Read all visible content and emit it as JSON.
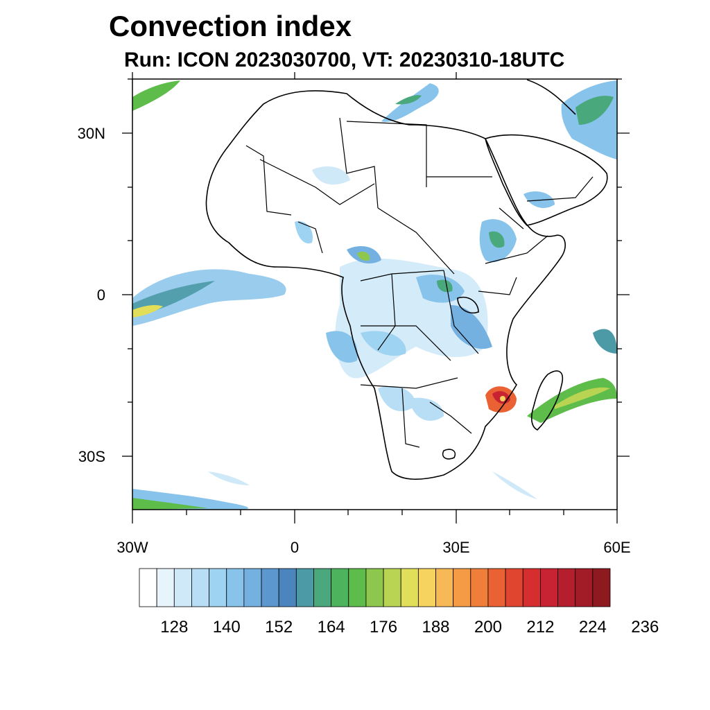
{
  "title": "Convection index",
  "subtitle": "Run: ICON 2023030700,  VT: 20230310-18UTC",
  "axes": {
    "lon_labels": [
      "30W",
      "0",
      "30E",
      "60E"
    ],
    "lat_labels": [
      "30N",
      "0",
      "30S"
    ],
    "lon_range": [
      -30,
      60
    ],
    "lat_range": [
      -40,
      40
    ]
  },
  "colorbar": {
    "colors": [
      "#ffffff",
      "#e8f4fc",
      "#cfe9f8",
      "#b7def5",
      "#9fd3f2",
      "#87c3ea",
      "#74b1e1",
      "#5c98cf",
      "#4c85be",
      "#4c9aa6",
      "#4aa87d",
      "#4db35c",
      "#5ebd4a",
      "#8ec74d",
      "#b8d452",
      "#e1df5a",
      "#f5d35e",
      "#f7b955",
      "#f59b45",
      "#f07e3b",
      "#ea6233",
      "#e04530",
      "#d62e2f",
      "#c72332",
      "#b51e2d",
      "#a11c26",
      "#8c1a1e"
    ],
    "labels": [
      "128",
      "140",
      "152",
      "164",
      "176",
      "188",
      "200",
      "212",
      "224",
      "236"
    ]
  }
}
